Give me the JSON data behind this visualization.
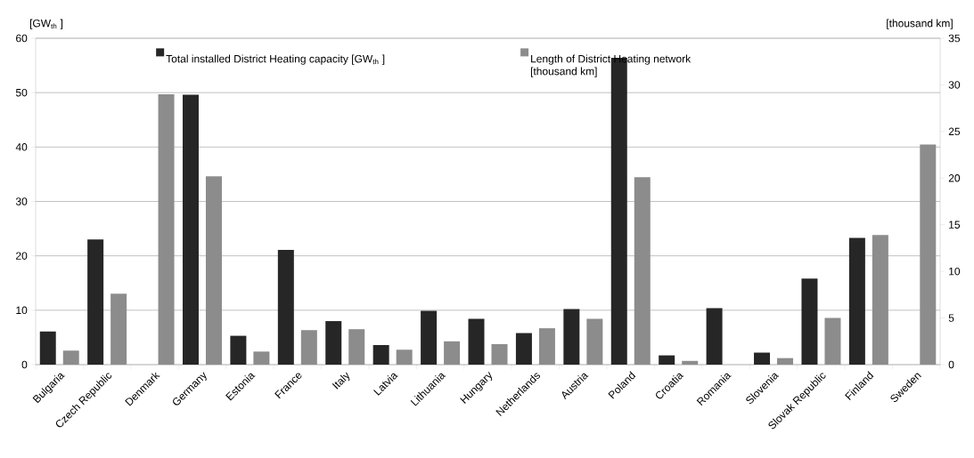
{
  "chart_data": {
    "type": "bar",
    "categories": [
      "Bulgaria",
      "Czech Republic",
      "Denmark",
      "Germany",
      "Estonia",
      "France",
      "Italy",
      "Latvia",
      "Lithuania",
      "Hungary",
      "Netherlands",
      "Austria",
      "Poland",
      "Croatia",
      "Romania",
      "Slovenia",
      "Slovak Republic",
      "Finland",
      "Sweden"
    ],
    "ylabel": "[GW$_{th}$ ]",
    "y2label": "[thousand km]",
    "ylim": [
      0,
      60
    ],
    "yticks": [
      0,
      10,
      20,
      30,
      40,
      50,
      60
    ],
    "y2lim": [
      0,
      35
    ],
    "y2ticks": [
      0,
      5,
      10,
      15,
      20,
      25,
      30,
      35
    ],
    "grid": "y",
    "legend": "top",
    "series": [
      {
        "name": "Total installed District Heating capacity [GW$_{th}$ ]",
        "color": "#262626",
        "values": [
          6.1,
          23.0,
          null,
          49.6,
          5.3,
          21.1,
          8.0,
          3.6,
          9.9,
          8.4,
          5.8,
          10.2,
          56.4,
          1.7,
          10.4,
          2.2,
          15.8,
          23.3,
          null
        ]
      },
      {
        "name": "Length of District Heating network [thousand km]",
        "color": "#8c8c8c",
        "axis": "y2",
        "values": [
          1.5,
          7.6,
          29.0,
          20.2,
          1.4,
          3.7,
          3.8,
          1.6,
          2.5,
          2.2,
          3.9,
          4.9,
          20.1,
          0.4,
          null,
          0.7,
          5.0,
          13.9,
          23.6
        ]
      }
    ]
  }
}
